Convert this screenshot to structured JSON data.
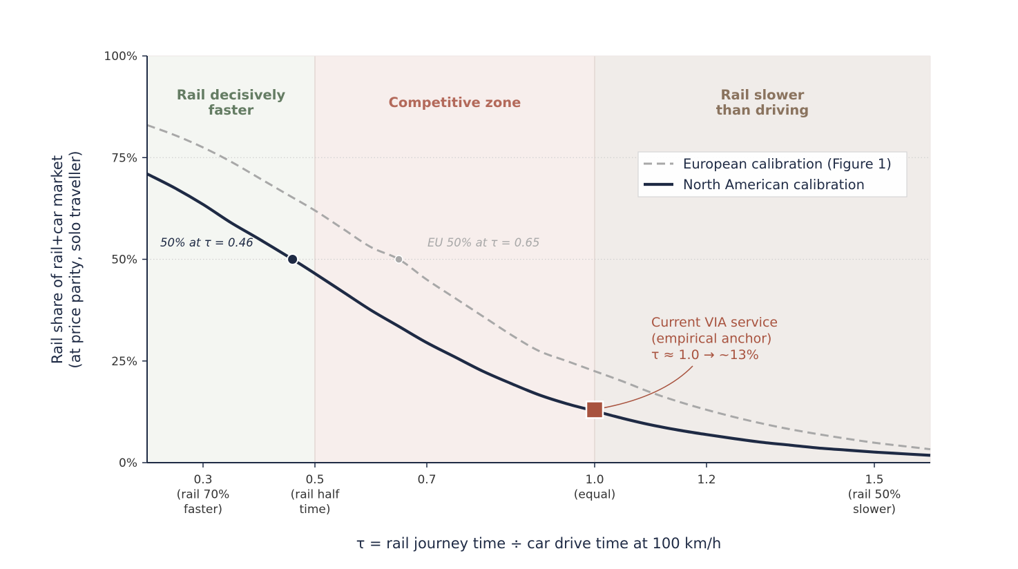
{
  "colors": {
    "na_curve": "#1e2a44",
    "eu_curve": "#a8a8a8",
    "via_marker": "#a8533f",
    "zone_fast": "#f4f6f2",
    "zone_competitive": "#f7eeec",
    "zone_slow": "#f0ece9",
    "zone_fast_label": "#647c63",
    "zone_competitive_label": "#b3695a",
    "zone_slow_label": "#8a735e",
    "axis": "#1e2a44"
  },
  "chart_data": {
    "type": "line",
    "xlabel": "τ  =  rail journey time  ÷  car drive time at 100 km/h",
    "ylabel_lines": [
      "Rail share of rail+car market",
      "(at price parity, solo traveller)"
    ],
    "xlim": [
      0.2,
      1.6
    ],
    "ylim": [
      0,
      100
    ],
    "x_ticks": [
      {
        "value": 0.3,
        "lines": [
          "0.3",
          "(rail 70%",
          "faster)"
        ]
      },
      {
        "value": 0.5,
        "lines": [
          "0.5",
          "(rail half",
          "time)"
        ]
      },
      {
        "value": 0.7,
        "lines": [
          "0.7"
        ]
      },
      {
        "value": 1.0,
        "lines": [
          "1.0",
          "(equal)"
        ]
      },
      {
        "value": 1.2,
        "lines": [
          "1.2"
        ]
      },
      {
        "value": 1.5,
        "lines": [
          "1.5",
          "(rail 50%",
          "slower)"
        ]
      }
    ],
    "y_ticks": [
      {
        "value": 0,
        "label": "0%"
      },
      {
        "value": 25,
        "label": "25%"
      },
      {
        "value": 50,
        "label": "50%"
      },
      {
        "value": 75,
        "label": "75%"
      },
      {
        "value": 100,
        "label": "100%"
      }
    ],
    "grid": "horizontal dotted at 50% and 75%",
    "zones": [
      {
        "from": 0.2,
        "to": 0.5,
        "lines": [
          "Rail decisively",
          "faster"
        ],
        "color_key": "fast"
      },
      {
        "from": 0.5,
        "to": 1.0,
        "lines": [
          "Competitive zone"
        ],
        "color_key": "competitive"
      },
      {
        "from": 1.0,
        "to": 1.6,
        "lines": [
          "Rail slower",
          "than driving"
        ],
        "color_key": "slow"
      }
    ],
    "series": [
      {
        "name": "European calibration (Figure 1)",
        "style": "dashed",
        "x": [
          0.2,
          0.25,
          0.3,
          0.35,
          0.4,
          0.45,
          0.5,
          0.55,
          0.6,
          0.65,
          0.7,
          0.75,
          0.8,
          0.85,
          0.9,
          0.95,
          1.0,
          1.05,
          1.1,
          1.15,
          1.2,
          1.25,
          1.3,
          1.35,
          1.4,
          1.45,
          1.5,
          1.55,
          1.6
        ],
        "y": [
          83,
          80.5,
          77.5,
          74,
          70,
          66,
          62,
          57.5,
          53,
          50,
          45,
          40.5,
          36,
          31.5,
          27.5,
          25,
          22.5,
          20,
          17.3,
          15,
          13,
          11.2,
          9.6,
          8.2,
          7,
          5.9,
          4.9,
          4.1,
          3.3
        ]
      },
      {
        "name": "North American calibration",
        "style": "solid",
        "x": [
          0.2,
          0.25,
          0.3,
          0.35,
          0.4,
          0.46,
          0.5,
          0.55,
          0.6,
          0.65,
          0.7,
          0.75,
          0.8,
          0.85,
          0.9,
          0.95,
          1.0,
          1.05,
          1.1,
          1.15,
          1.2,
          1.25,
          1.3,
          1.35,
          1.4,
          1.45,
          1.5,
          1.55,
          1.6
        ],
        "y": [
          71,
          67.5,
          63.5,
          59,
          55,
          50,
          46.5,
          42,
          37.5,
          33.5,
          29.5,
          26,
          22.5,
          19.5,
          16.7,
          14.5,
          12.7,
          10.9,
          9.3,
          8,
          6.9,
          5.9,
          5,
          4.3,
          3.6,
          3.1,
          2.6,
          2.2,
          1.8
        ]
      }
    ],
    "markers": [
      {
        "name": "na-50-point",
        "x": 0.46,
        "y": 50
      },
      {
        "name": "eu-50-point",
        "x": 0.65,
        "y": 50
      },
      {
        "name": "via-anchor",
        "x": 1.0,
        "y": 13
      }
    ],
    "annotations": {
      "na_50": "50% at τ = 0.46",
      "eu_50": "EU 50% at τ = 0.65",
      "via_lines": [
        "Current VIA service",
        "(empirical anchor)",
        "τ ≈ 1.0  →  ~13%"
      ]
    },
    "legend": {
      "placement": "upper right",
      "entries": [
        "European calibration (Figure 1)",
        "North American calibration"
      ]
    }
  }
}
